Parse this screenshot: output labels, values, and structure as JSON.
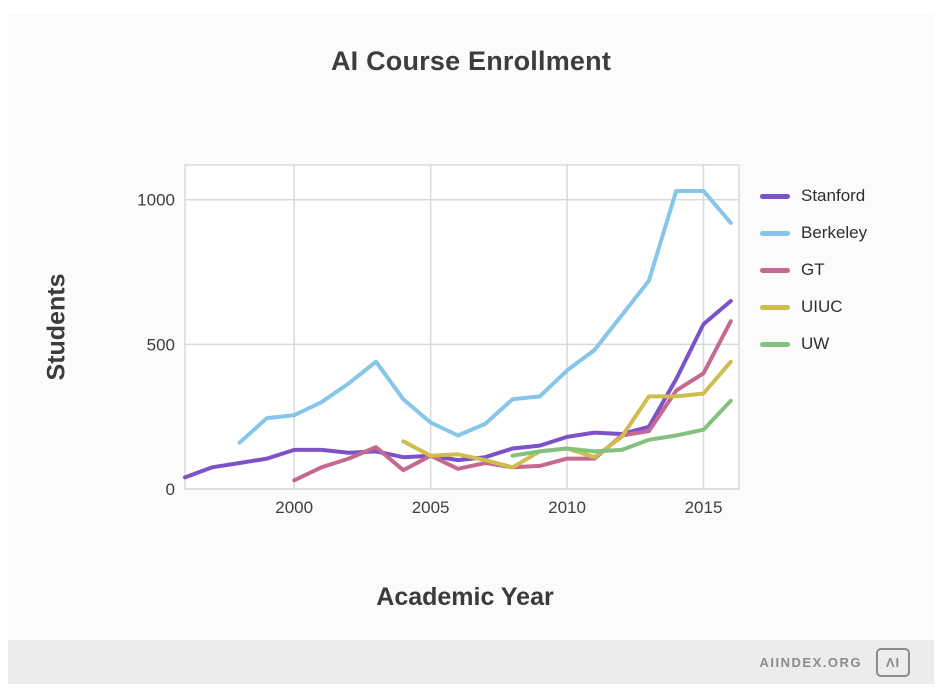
{
  "page": {
    "title": "AI Course Enrollment",
    "x_axis_label": "Academic Year",
    "y_axis_label": "Students"
  },
  "footer": {
    "brand": "AIINDEX.ORG",
    "logo_text": "ΛI"
  },
  "chart_data": {
    "type": "line",
    "title": "AI Course Enrollment",
    "xlabel": "Academic Year",
    "ylabel": "Students",
    "xlim": [
      1996,
      2016.3
    ],
    "ylim": [
      0,
      1120
    ],
    "xticks": [
      2000,
      2005,
      2010,
      2015
    ],
    "yticks": [
      0,
      500,
      1000
    ],
    "grid": true,
    "grid_color": "#d9d9d9",
    "legend_position": "right",
    "series": [
      {
        "name": "Stanford",
        "color": "#7c52c8",
        "points": [
          [
            1996,
            40
          ],
          [
            1997,
            75
          ],
          [
            1998,
            90
          ],
          [
            1999,
            105
          ],
          [
            2000,
            135
          ],
          [
            2001,
            135
          ],
          [
            2002,
            125
          ],
          [
            2003,
            130
          ],
          [
            2004,
            110
          ],
          [
            2005,
            115
          ],
          [
            2006,
            100
          ],
          [
            2007,
            110
          ],
          [
            2008,
            140
          ],
          [
            2009,
            150
          ],
          [
            2010,
            180
          ],
          [
            2011,
            195
          ],
          [
            2012,
            190
          ],
          [
            2013,
            215
          ],
          [
            2014,
            380
          ],
          [
            2015,
            570
          ],
          [
            2016,
            650
          ]
        ]
      },
      {
        "name": "Berkeley",
        "color": "#85c6ea",
        "points": [
          [
            1998,
            160
          ],
          [
            1999,
            245
          ],
          [
            2000,
            255
          ],
          [
            2001,
            300
          ],
          [
            2002,
            365
          ],
          [
            2003,
            440
          ],
          [
            2004,
            310
          ],
          [
            2005,
            230
          ],
          [
            2006,
            185
          ],
          [
            2007,
            225
          ],
          [
            2008,
            310
          ],
          [
            2009,
            320
          ],
          [
            2010,
            410
          ],
          [
            2011,
            480
          ],
          [
            2012,
            600
          ],
          [
            2013,
            720
          ],
          [
            2014,
            1030
          ],
          [
            2015,
            1030
          ],
          [
            2016,
            920
          ]
        ]
      },
      {
        "name": "GT",
        "color": "#c4698f",
        "points": [
          [
            2000,
            30
          ],
          [
            2001,
            75
          ],
          [
            2002,
            105
          ],
          [
            2003,
            145
          ],
          [
            2004,
            65
          ],
          [
            2005,
            115
          ],
          [
            2006,
            70
          ],
          [
            2007,
            90
          ],
          [
            2008,
            75
          ],
          [
            2009,
            80
          ],
          [
            2010,
            105
          ],
          [
            2011,
            105
          ],
          [
            2012,
            185
          ],
          [
            2013,
            200
          ],
          [
            2014,
            340
          ],
          [
            2015,
            400
          ],
          [
            2016,
            580
          ]
        ]
      },
      {
        "name": "UIUC",
        "color": "#d1bd4d",
        "points": [
          [
            2004,
            165
          ],
          [
            2005,
            115
          ],
          [
            2006,
            120
          ],
          [
            2007,
            100
          ],
          [
            2008,
            75
          ],
          [
            2009,
            130
          ],
          [
            2010,
            140
          ],
          [
            2011,
            110
          ],
          [
            2012,
            180
          ],
          [
            2013,
            320
          ],
          [
            2014,
            320
          ],
          [
            2015,
            330
          ],
          [
            2016,
            440
          ]
        ]
      },
      {
        "name": "UW",
        "color": "#84c17e",
        "points": [
          [
            2008,
            115
          ],
          [
            2009,
            130
          ],
          [
            2010,
            140
          ],
          [
            2011,
            130
          ],
          [
            2012,
            135
          ],
          [
            2013,
            170
          ],
          [
            2014,
            185
          ],
          [
            2015,
            205
          ],
          [
            2016,
            305
          ]
        ]
      }
    ]
  }
}
